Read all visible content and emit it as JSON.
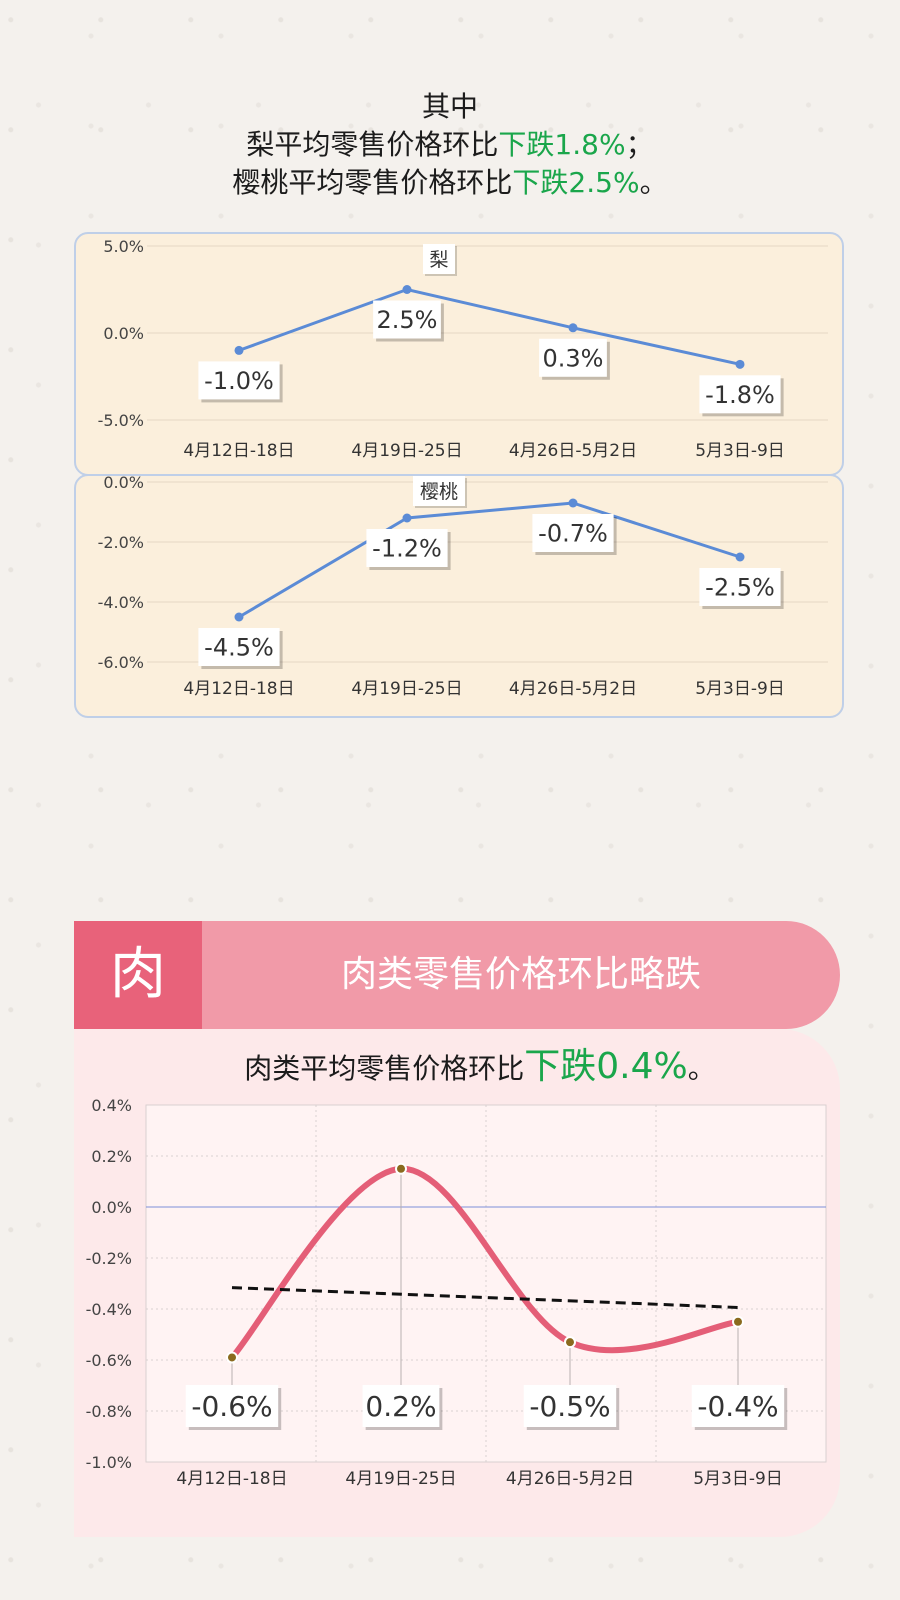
{
  "intro": {
    "line1": "其中",
    "line2_prefix": "梨平均零售价格环比",
    "line2_highlight": "下跌1.8%",
    "line2_suffix": "；",
    "line3_prefix": "樱桃平均零售价格环比",
    "line3_highlight": "下跌2.5%",
    "line3_suffix": "。"
  },
  "meat": {
    "icon_char": "肉",
    "title": "肉类零售价格环比略跌",
    "summary_prefix": "肉类平均零售价格环比",
    "summary_highlight": "下跌0.4%",
    "summary_suffix": "。"
  },
  "colors": {
    "highlight_green": "#1aa64b",
    "line_blue": "#5b8bd6",
    "meat_line": "#e45e77",
    "banner_dark": "#e8627a",
    "banner_light": "#f19aa8"
  },
  "chart_data": [
    {
      "type": "line",
      "title": "梨",
      "categories": [
        "4月12日-18日",
        "4月19日-25日",
        "4月26日-5月2日",
        "5月3日-9日"
      ],
      "values": [
        -1.0,
        2.5,
        0.3,
        -1.8
      ],
      "data_labels": [
        "-1.0%",
        "2.5%",
        "0.3%",
        "-1.8%"
      ],
      "ylim": [
        -5.0,
        5.0
      ],
      "yticks": [
        "5.0%",
        "0.0%",
        "-5.0%"
      ],
      "grid": true
    },
    {
      "type": "line",
      "title": "樱桃",
      "categories": [
        "4月12日-18日",
        "4月19日-25日",
        "4月26日-5月2日",
        "5月3日-9日"
      ],
      "values": [
        -4.5,
        -1.2,
        -0.7,
        -2.5
      ],
      "data_labels": [
        "-4.5%",
        "-1.2%",
        "-0.7%",
        "-2.5%"
      ],
      "ylim": [
        -6.0,
        0.0
      ],
      "yticks": [
        "0.0%",
        "-2.0%",
        "-4.0%",
        "-6.0%"
      ],
      "grid": true
    },
    {
      "type": "line",
      "title": "",
      "smooth": true,
      "trendline": "linear-dashed",
      "categories": [
        "4月12日-18日",
        "4月19日-25日",
        "4月26日-5月2日",
        "5月3日-9日"
      ],
      "values": [
        -0.59,
        0.15,
        -0.53,
        -0.45
      ],
      "data_labels": [
        "-0.6%",
        "0.2%",
        "-0.5%",
        "-0.4%"
      ],
      "ylim": [
        -1.0,
        0.4
      ],
      "yticks": [
        "0.4%",
        "0.2%",
        "0.0%",
        "-0.2%",
        "-0.4%",
        "-0.6%",
        "-0.8%",
        "-1.0%"
      ],
      "grid": true
    }
  ]
}
